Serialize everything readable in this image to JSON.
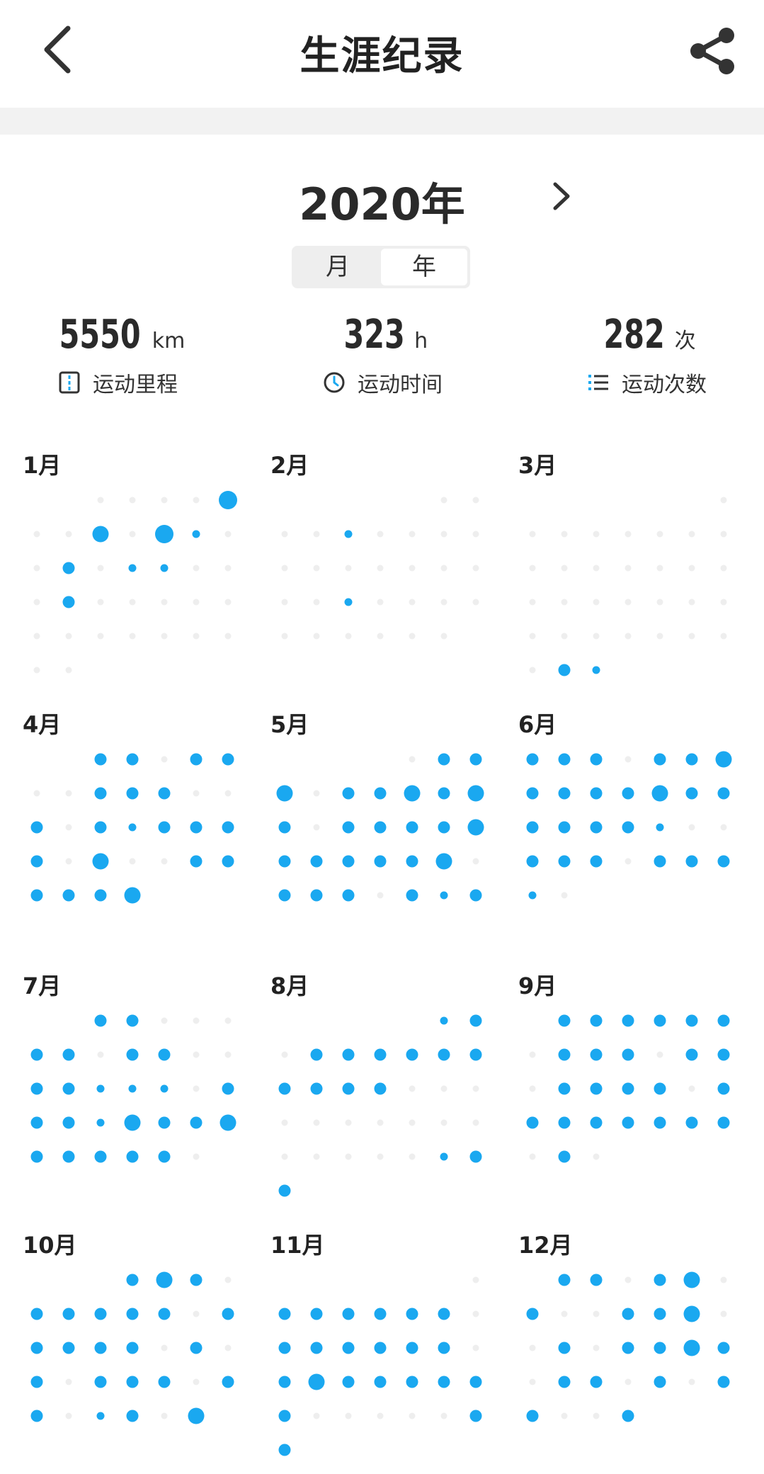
{
  "nav": {
    "title": "生涯纪录",
    "back_icon": "chevron-left-icon",
    "share_icon": "share-icon"
  },
  "period": {
    "year_label": "2020年",
    "next_icon": "chevron-right-icon",
    "tabs": [
      {
        "label": "月",
        "active": false
      },
      {
        "label": "年",
        "active": true
      }
    ]
  },
  "stats": [
    {
      "value": "5550",
      "unit": "km",
      "label": "运动里程",
      "icon": "road-icon"
    },
    {
      "value": "323",
      "unit": "h",
      "label": "运动时间",
      "icon": "clock-icon"
    },
    {
      "value": "282",
      "unit": "次",
      "label": "运动次数",
      "icon": "list-icon"
    }
  ],
  "colors": {
    "active_dot": "#1aa8f0",
    "empty_dot": "#eeeeee",
    "text": "#222222"
  },
  "calendar": {
    "dot_levels_legend": "0 = no activity, 1 = small, 2 = medium, 3 = large, 4 = extra large",
    "months": [
      {
        "label": "1月",
        "days": [
          0,
          0,
          0,
          0,
          4,
          0,
          0,
          3,
          0,
          4,
          1,
          0,
          0,
          2,
          0,
          1,
          1,
          0,
          0,
          0,
          2,
          0,
          0,
          0,
          0,
          0,
          0,
          0,
          0,
          0,
          0,
          0,
          0,
          0,
          0
        ]
      },
      {
        "label": "2月",
        "days": [
          0,
          0,
          0,
          0,
          1,
          0,
          0,
          0,
          0,
          0,
          0,
          0,
          0,
          0,
          0,
          0,
          0,
          0,
          1,
          0,
          0,
          0,
          0,
          0,
          0,
          0,
          0,
          0,
          0
        ]
      },
      {
        "label": "3月",
        "days": [
          0,
          0,
          0,
          0,
          0,
          0,
          0,
          0,
          0,
          0,
          0,
          0,
          0,
          0,
          0,
          0,
          0,
          0,
          0,
          0,
          0,
          0,
          0,
          0,
          0,
          0,
          0,
          0,
          0,
          0,
          2,
          1
        ]
      },
      {
        "label": "4月",
        "days": [
          2,
          2,
          0,
          2,
          2,
          0,
          0,
          2,
          2,
          2,
          0,
          0,
          2,
          0,
          2,
          1,
          2,
          2,
          2,
          2,
          0,
          3,
          0,
          0,
          2,
          2,
          2,
          2,
          2,
          3
        ]
      },
      {
        "label": "5月",
        "days": [
          0,
          2,
          2,
          3,
          0,
          2,
          2,
          3,
          2,
          3,
          2,
          0,
          2,
          2,
          2,
          2,
          3,
          2,
          2,
          2,
          2,
          2,
          3,
          0,
          2,
          2,
          2,
          0,
          2,
          1,
          2
        ]
      },
      {
        "label": "6月",
        "days": [
          2,
          2,
          2,
          0,
          2,
          2,
          3,
          2,
          2,
          2,
          2,
          3,
          2,
          2,
          2,
          2,
          2,
          2,
          1,
          0,
          0,
          2,
          2,
          2,
          0,
          2,
          2,
          2,
          1,
          0
        ]
      },
      {
        "label": "7月",
        "days": [
          2,
          2,
          0,
          0,
          0,
          2,
          2,
          0,
          2,
          2,
          0,
          0,
          2,
          2,
          1,
          1,
          1,
          0,
          2,
          2,
          2,
          1,
          3,
          2,
          2,
          3,
          2,
          2,
          2,
          2,
          2,
          0
        ]
      },
      {
        "label": "8月",
        "days": [
          1,
          2,
          0,
          2,
          2,
          2,
          2,
          2,
          2,
          2,
          2,
          2,
          2,
          0,
          0,
          0,
          0,
          0,
          0,
          0,
          0,
          0,
          0,
          0,
          0,
          0,
          0,
          0,
          1,
          2,
          2
        ]
      },
      {
        "label": "9月",
        "days": [
          2,
          2,
          2,
          2,
          2,
          2,
          0,
          2,
          2,
          2,
          0,
          2,
          2,
          0,
          2,
          2,
          2,
          2,
          0,
          2,
          2,
          2,
          2,
          2,
          2,
          2,
          2,
          0,
          2,
          0
        ]
      },
      {
        "label": "10月",
        "days": [
          2,
          3,
          2,
          0,
          2,
          2,
          2,
          2,
          2,
          0,
          2,
          2,
          2,
          2,
          2,
          0,
          2,
          0,
          2,
          0,
          2,
          2,
          2,
          0,
          2,
          2,
          0,
          1,
          2,
          0,
          3
        ]
      },
      {
        "label": "11月",
        "days": [
          0,
          2,
          2,
          2,
          2,
          2,
          2,
          0,
          2,
          2,
          2,
          2,
          2,
          2,
          0,
          2,
          3,
          2,
          2,
          2,
          2,
          2,
          2,
          0,
          0,
          0,
          0,
          0,
          2,
          2
        ]
      },
      {
        "label": "12月",
        "days": [
          2,
          2,
          0,
          2,
          3,
          0,
          2,
          0,
          0,
          2,
          2,
          3,
          0,
          0,
          2,
          0,
          2,
          2,
          3,
          2,
          0,
          2,
          2,
          0,
          2,
          0,
          2,
          2,
          0,
          0,
          2
        ]
      }
    ]
  }
}
